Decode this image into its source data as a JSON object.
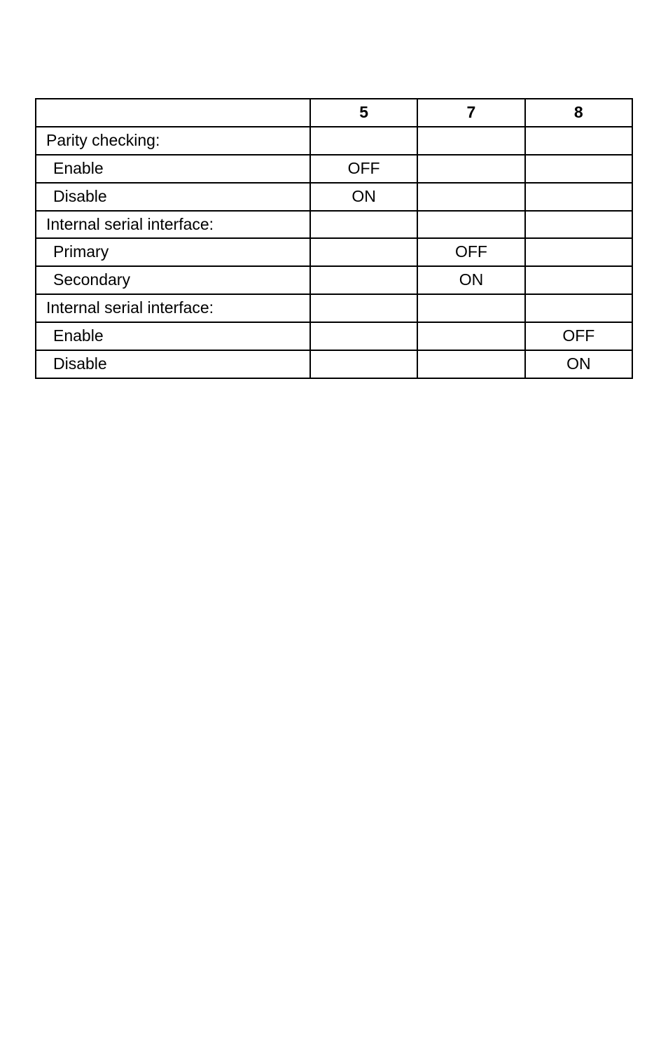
{
  "table": {
    "type": "table",
    "columns": [
      "",
      "5",
      "7",
      "8"
    ],
    "col_widths_pct": [
      46,
      18,
      18,
      18
    ],
    "border_color": "#000000",
    "background_color": "#ffffff",
    "header_font_weight": "bold",
    "cell_fontsize_pt": 17,
    "rows": [
      {
        "label": "Parity checking:",
        "indent": false,
        "c5": "",
        "c7": "",
        "c8": ""
      },
      {
        "label": "Enable",
        "indent": true,
        "c5": "OFF",
        "c7": "",
        "c8": ""
      },
      {
        "label": "Disable",
        "indent": true,
        "c5": "ON",
        "c7": "",
        "c8": ""
      },
      {
        "label": "Internal serial interface:",
        "indent": false,
        "c5": "",
        "c7": "",
        "c8": ""
      },
      {
        "label": "Primary",
        "indent": true,
        "c5": "",
        "c7": "OFF",
        "c8": ""
      },
      {
        "label": "Secondary",
        "indent": true,
        "c5": "",
        "c7": "ON",
        "c8": ""
      },
      {
        "label": "Internal serial interface:",
        "indent": false,
        "c5": "",
        "c7": "",
        "c8": ""
      },
      {
        "label": "Enable",
        "indent": true,
        "c5": "",
        "c7": "",
        "c8": "OFF"
      },
      {
        "label": "Disable",
        "indent": true,
        "c5": "",
        "c7": "",
        "c8": "ON"
      }
    ]
  }
}
